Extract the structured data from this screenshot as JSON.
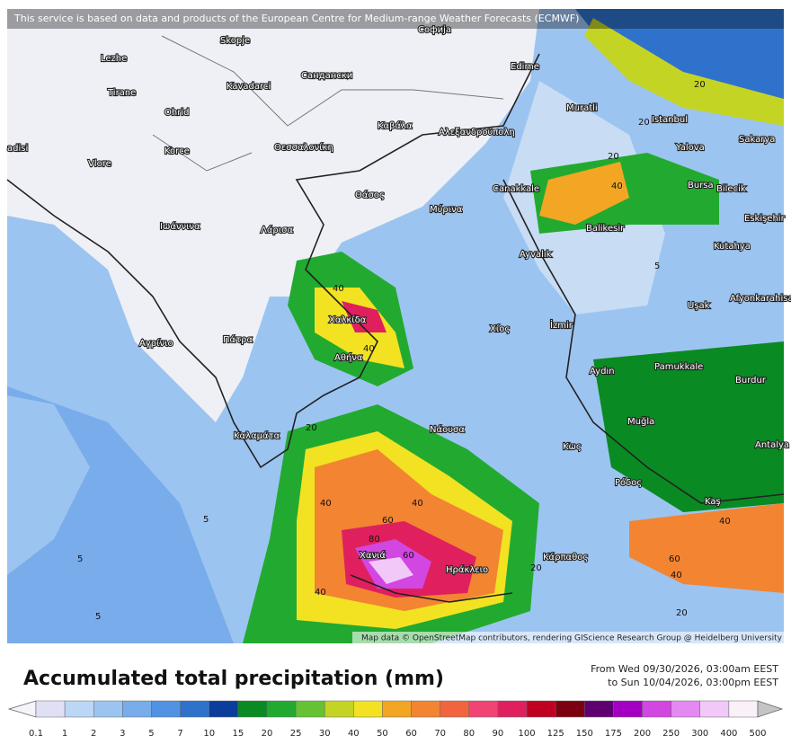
{
  "banner": "This service is based on data and products of the European Centre for Medium-range Weather Forecasts (ECMWF)",
  "cities": [
    "Skopje",
    "Софија",
    "Lezhe",
    "Tirane",
    "Ohrid",
    "Kavadarci",
    "Сандански",
    "Edirne",
    "Muratli",
    "Istanbul",
    "Sakarya",
    "Yalova",
    "Korce",
    "Θεσσαλονίκη",
    "Καβάλα",
    "Αλεξανδρούπολη",
    "Vlore",
    "adisi",
    "Canakkale",
    "Bursa",
    "Bilecik",
    "Θάσος",
    "Μύρινα",
    "Ιωάννινα",
    "Λάρισα",
    "Balikesir",
    "Eskişehir",
    "Kutahya",
    "Ayvalık",
    "Afyonkarahisar",
    "Uşak",
    "Χαλκίδα",
    "İzmir",
    "Χίος",
    "Αγρίνιο",
    "Πάτρα",
    "Αθήνα",
    "Pamukkale",
    "Aydın",
    "Burdur",
    "Muğla",
    "Νάουσα",
    "Καλαμάτα",
    "Κως",
    "Antalya",
    "Ρόδος",
    "Kaş",
    "Κάρπαθος",
    "Χανιά",
    "Ηράκλειο"
  ],
  "contour_labels": [
    "20",
    "20",
    "40",
    "40",
    "40",
    "5",
    "5",
    "5",
    "5",
    "40",
    "60",
    "60",
    "80",
    "40",
    "40",
    "20",
    "20",
    "40",
    "60",
    "40",
    "20",
    "20"
  ],
  "attribution": "Map data © OpenStreetMap contributors, rendering GIScience Research Group @ Heidelberg University",
  "title": "Accumulated total precipitation (mm)",
  "period_from": "From Wed 09/30/2026, 03:00am EEST",
  "period_to": "to Sun 10/04/2026, 03:00pm EEST",
  "colorbar": {
    "labels": [
      "0.1",
      "1",
      "2",
      "3",
      "5",
      "7",
      "10",
      "15",
      "20",
      "25",
      "30",
      "40",
      "50",
      "60",
      "70",
      "80",
      "90",
      "100",
      "125",
      "150",
      "175",
      "200",
      "250",
      "300",
      "400",
      "500"
    ],
    "colors": [
      "#f4f4fa",
      "#e0e0f5",
      "#bcd6f5",
      "#9cc4f0",
      "#78acea",
      "#5292e2",
      "#2e72cc",
      "#0c3c9c",
      "#0a8a22",
      "#22aa30",
      "#66c232",
      "#c4d424",
      "#f2e222",
      "#f2a624",
      "#f28432",
      "#f26440",
      "#f04474",
      "#e0205e",
      "#c00022",
      "#7c0010",
      "#5e0070",
      "#a400c4",
      "#d246e2",
      "#e488f2",
      "#f2c8f8",
      "#faf0fa",
      "#c4c4c4"
    ]
  }
}
